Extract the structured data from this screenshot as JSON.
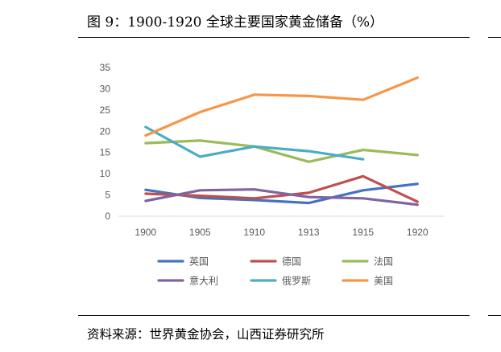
{
  "title": "图 9：1900-1920 全球主要国家黄金储备（%）",
  "source": "资料来源：世界黄金协会，山西证券研究所",
  "chart_data": {
    "type": "line",
    "categories": [
      "1900",
      "1905",
      "1910",
      "1913",
      "1915",
      "1920"
    ],
    "ylim": [
      0,
      35
    ],
    "yticks": [
      0,
      5,
      10,
      15,
      20,
      25,
      30,
      35
    ],
    "grid": false,
    "legend": "bottom",
    "series": [
      {
        "name": "英国",
        "color": "#4472C4",
        "values": [
          6.2,
          4.3,
          3.8,
          3.1,
          6.1,
          7.6
        ]
      },
      {
        "name": "德国",
        "color": "#C0504D",
        "values": [
          5.3,
          4.8,
          4.2,
          5.5,
          9.4,
          3.4
        ]
      },
      {
        "name": "法国",
        "color": "#9BBB59",
        "values": [
          17.2,
          17.8,
          16.4,
          12.8,
          15.6,
          14.4
        ]
      },
      {
        "name": "意大利",
        "color": "#8064A2",
        "values": [
          3.6,
          6.1,
          6.3,
          4.5,
          4.2,
          2.7
        ]
      },
      {
        "name": "俄罗斯",
        "color": "#4BACC6",
        "values": [
          21.0,
          14.0,
          16.4,
          15.3,
          13.4,
          null
        ]
      },
      {
        "name": "美国",
        "color": "#F79646",
        "values": [
          19.0,
          24.5,
          28.6,
          28.3,
          27.4,
          32.6
        ]
      }
    ]
  }
}
